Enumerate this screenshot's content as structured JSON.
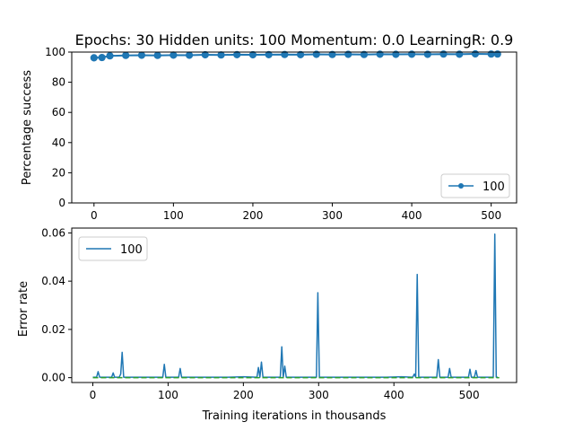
{
  "figure": {
    "title": "Epochs: 30 Hidden units: 100 Momentum: 0.0 LearningR: 0.9"
  },
  "colors": {
    "series": "#1f77b4",
    "reference": "#2ca02c",
    "axes": "#000000",
    "background": "#ffffff"
  },
  "chart_data": [
    {
      "type": "line",
      "title": "Epochs: 30 Hidden units: 100 Momentum: 0.0 LearningR: 0.9",
      "xlabel": "",
      "ylabel": "Percentage success",
      "xlim": [
        -28,
        532
      ],
      "ylim": [
        0,
        100
      ],
      "xticks": [
        0,
        100,
        200,
        300,
        400,
        500
      ],
      "yticks": [
        0,
        20,
        40,
        60,
        80,
        100
      ],
      "grid": false,
      "legend": {
        "placement": "bottom-right",
        "entries": [
          "100"
        ]
      },
      "series": [
        {
          "name": "100",
          "marker": "circle",
          "x": [
            0,
            10,
            20,
            40,
            60,
            80,
            100,
            120,
            140,
            160,
            180,
            200,
            220,
            240,
            260,
            280,
            300,
            320,
            340,
            360,
            380,
            400,
            420,
            440,
            460,
            480,
            500,
            508
          ],
          "y": [
            96.2,
            96.4,
            97.5,
            97.8,
            97.9,
            97.8,
            98.0,
            97.9,
            98.2,
            98.1,
            98.3,
            98.2,
            98.3,
            98.4,
            98.3,
            98.5,
            98.4,
            98.5,
            98.4,
            98.6,
            98.5,
            98.6,
            98.5,
            98.7,
            98.6,
            98.8,
            98.7,
            98.7
          ]
        }
      ]
    },
    {
      "type": "line",
      "title": "",
      "xlabel": "Training iterations in thousands",
      "ylabel": "Error rate",
      "xlim": [
        -28,
        563
      ],
      "ylim": [
        -0.002,
        0.062
      ],
      "xticks": [
        0,
        100,
        200,
        300,
        400,
        500
      ],
      "yticks": [
        0.0,
        0.02,
        0.04,
        0.06
      ],
      "ytick_labels": [
        "0.00",
        "0.02",
        "0.04",
        "0.06"
      ],
      "grid": false,
      "legend": {
        "placement": "top-left",
        "entries": [
          "100"
        ]
      },
      "series": [
        {
          "name": "100",
          "x": [
            0,
            5,
            7,
            9,
            15,
            25,
            27,
            29,
            35,
            37,
            39,
            41,
            43,
            60,
            80,
            93,
            95,
            97,
            110,
            114,
            116,
            118,
            150,
            180,
            200,
            218,
            220,
            222,
            224,
            226,
            240,
            249,
            251,
            253,
            255,
            257,
            259,
            280,
            297,
            299,
            301,
            303,
            330,
            360,
            390,
            410,
            425,
            427,
            429,
            431,
            433,
            440,
            457,
            459,
            461,
            463,
            472,
            474,
            476,
            490,
            499,
            501,
            503,
            507,
            509,
            511,
            520,
            530,
            532,
            534,
            536,
            538
          ],
          "y": [
            0.0002,
            0.0002,
            0.0025,
            0.0002,
            0.0002,
            0.0002,
            0.002,
            0.0002,
            0.0002,
            0.0015,
            0.0105,
            0.0002,
            0.0002,
            0.0002,
            0.0002,
            0.0002,
            0.0055,
            0.0002,
            0.0002,
            0.0002,
            0.0038,
            0.0002,
            0.0002,
            0.0002,
            0.0004,
            0.0002,
            0.0042,
            0.0002,
            0.0065,
            0.0002,
            0.0002,
            0.0002,
            0.0128,
            0.0002,
            0.0048,
            0.0002,
            0.0002,
            0.0002,
            0.0002,
            0.0352,
            0.0002,
            0.0002,
            0.0002,
            0.0002,
            0.0002,
            0.0004,
            0.0002,
            0.0015,
            0.0002,
            0.0428,
            0.0002,
            0.0002,
            0.0002,
            0.0075,
            0.0002,
            0.0002,
            0.0002,
            0.0038,
            0.0002,
            0.0002,
            0.0002,
            0.0035,
            0.0002,
            0.0002,
            0.003,
            0.0002,
            0.0002,
            0.0002,
            0.0002,
            0.0595,
            0.0002,
            0.0002
          ]
        },
        {
          "name": "",
          "style": "dashed",
          "x": [
            0,
            540
          ],
          "y": [
            0.0,
            0.0
          ]
        }
      ]
    }
  ]
}
